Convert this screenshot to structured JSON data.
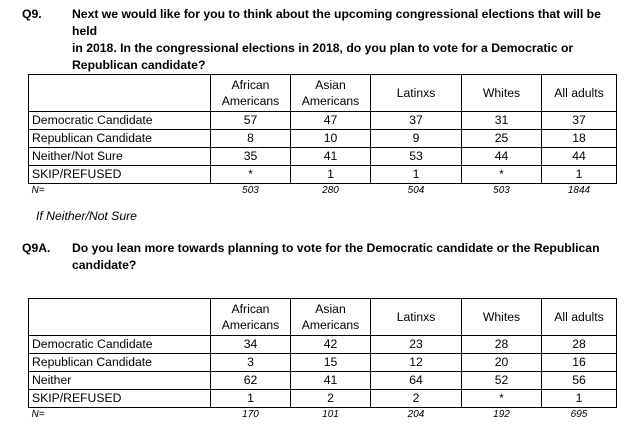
{
  "q9": {
    "number": "Q9.",
    "lines": [
      "Next we would like for you to think about the upcoming congressional elections that will be held",
      "in 2018. In the congressional elections in 2018, do you plan to vote for a Democratic or",
      "Republican candidate?"
    ]
  },
  "columns": {
    "african": [
      "African",
      "Americans"
    ],
    "asian": [
      "Asian",
      "Americans"
    ],
    "latinx": "Latinxs",
    "whites": "Whites",
    "all": "All adults"
  },
  "table1": {
    "rows": [
      {
        "label": "Democratic Candidate",
        "values": [
          "57",
          "47",
          "37",
          "31",
          "37"
        ]
      },
      {
        "label": "Republican Candidate",
        "values": [
          "8",
          "10",
          "9",
          "25",
          "18"
        ]
      },
      {
        "label": "Neither/Not Sure",
        "values": [
          "35",
          "41",
          "53",
          "44",
          "44"
        ]
      },
      {
        "label": "SKIP/REFUSED",
        "values": [
          "*",
          "1",
          "1",
          "*",
          "1"
        ]
      }
    ],
    "n_label": "N=",
    "n_values": [
      "503",
      "280",
      "504",
      "503",
      "1844"
    ]
  },
  "note": "If Neither/Not Sure",
  "q9a": {
    "number": "Q9A.",
    "lines": [
      "Do you lean more towards planning to vote for the Democratic candidate or the Republican",
      "candidate?"
    ]
  },
  "table2": {
    "rows": [
      {
        "label": "Democratic Candidate",
        "values": [
          "34",
          "42",
          "23",
          "28",
          "28"
        ]
      },
      {
        "label": "Republican Candidate",
        "values": [
          "3",
          "15",
          "12",
          "20",
          "16"
        ]
      },
      {
        "label": "Neither",
        "values": [
          "62",
          "41",
          "64",
          "52",
          "56"
        ]
      },
      {
        "label": "SKIP/REFUSED",
        "values": [
          "1",
          "2",
          "2",
          "*",
          "1"
        ]
      }
    ],
    "n_label": "N=",
    "n_values": [
      "170",
      "101",
      "204",
      "192",
      "695"
    ]
  }
}
